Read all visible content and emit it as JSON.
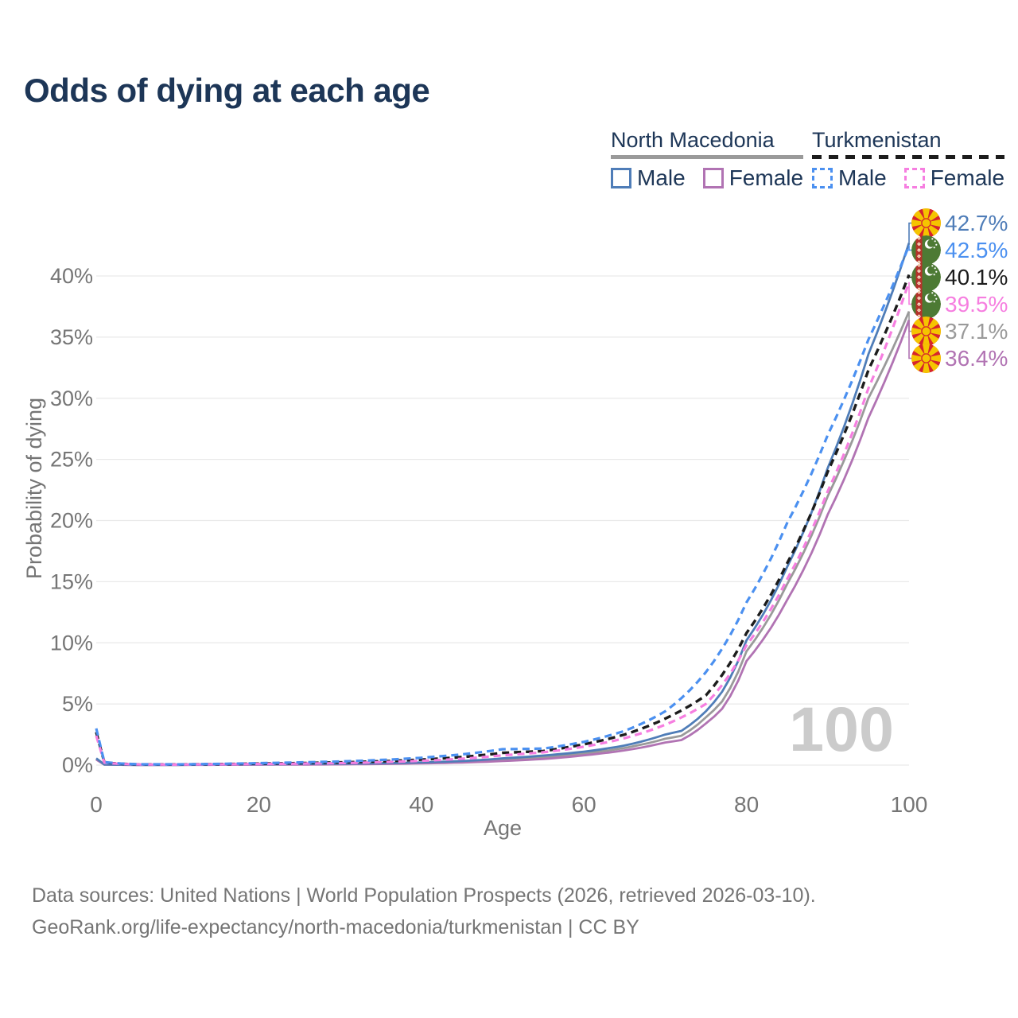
{
  "title": "Odds of dying at each age",
  "colors": {
    "title_text": "#1d3657",
    "axis_text": "#757575",
    "grid": "#e9e9e9",
    "watermark": "#cbcbcb",
    "footer_text": "#757575"
  },
  "legend": {
    "groups": [
      {
        "name": "North Macedonia",
        "line_style": "solid",
        "line_color": "#9a9a9a",
        "items": [
          {
            "label": "Male",
            "color": "#4f7db8",
            "dashed": false
          },
          {
            "label": "Female",
            "color": "#b173b3",
            "dashed": false
          }
        ]
      },
      {
        "name": "Turkmenistan",
        "line_style": "dashed",
        "line_color": "#1c1c1c",
        "items": [
          {
            "label": "Male",
            "color": "#4b90f0",
            "dashed": true
          },
          {
            "label": "Female",
            "color": "#f67ee0",
            "dashed": true
          }
        ]
      }
    ]
  },
  "chart_data": {
    "type": "line",
    "title": "Odds of dying at each age",
    "xlabel": "Age",
    "ylabel": "Probability of dying",
    "xlim": [
      0,
      100
    ],
    "ylim_pct": [
      0,
      44
    ],
    "xticks": [
      0,
      20,
      40,
      60,
      80,
      100
    ],
    "yticks_pct": [
      0,
      5,
      10,
      15,
      20,
      25,
      30,
      35,
      40
    ],
    "grid": true,
    "legend_position": "top-right",
    "watermark": "100",
    "series": [
      {
        "id": "mk-all",
        "name": "North Macedonia (both sexes)",
        "country": "North Macedonia",
        "flag": "mk",
        "color": "#9a9a9a",
        "dashed": false,
        "width": 2.8,
        "end_value_pct": 37.1,
        "end_label": "37.1%",
        "points_age_pct": [
          [
            0,
            0.5
          ],
          [
            1,
            0.045
          ],
          [
            5,
            0.018
          ],
          [
            10,
            0.018
          ],
          [
            15,
            0.033
          ],
          [
            20,
            0.05
          ],
          [
            25,
            0.07
          ],
          [
            30,
            0.085
          ],
          [
            35,
            0.12
          ],
          [
            40,
            0.18
          ],
          [
            45,
            0.27
          ],
          [
            50,
            0.44
          ],
          [
            55,
            0.64
          ],
          [
            60,
            0.95
          ],
          [
            65,
            1.4
          ],
          [
            70,
            2.15
          ],
          [
            72,
            2.4
          ],
          [
            75,
            3.9
          ],
          [
            77,
            5.2
          ],
          [
            80,
            9.3
          ],
          [
            85,
            14.8
          ],
          [
            90,
            22.0
          ],
          [
            95,
            30.0
          ],
          [
            100,
            37.1
          ]
        ]
      },
      {
        "id": "mk-female",
        "name": "North Macedonia Female",
        "country": "North Macedonia",
        "flag": "mk",
        "color": "#b173b3",
        "dashed": false,
        "width": 2.8,
        "end_value_pct": 36.4,
        "end_label": "36.4%",
        "points_age_pct": [
          [
            0,
            0.45
          ],
          [
            1,
            0.04
          ],
          [
            5,
            0.015
          ],
          [
            10,
            0.015
          ],
          [
            15,
            0.025
          ],
          [
            20,
            0.035
          ],
          [
            25,
            0.045
          ],
          [
            30,
            0.06
          ],
          [
            35,
            0.09
          ],
          [
            40,
            0.14
          ],
          [
            45,
            0.21
          ],
          [
            50,
            0.33
          ],
          [
            55,
            0.5
          ],
          [
            60,
            0.8
          ],
          [
            65,
            1.2
          ],
          [
            70,
            1.85
          ],
          [
            72,
            2.05
          ],
          [
            75,
            3.4
          ],
          [
            77,
            4.6
          ],
          [
            80,
            8.5
          ],
          [
            85,
            13.5
          ],
          [
            90,
            20.5
          ],
          [
            95,
            28.4
          ],
          [
            100,
            36.4
          ]
        ]
      },
      {
        "id": "mk-male",
        "name": "North Macedonia Male",
        "country": "North Macedonia",
        "flag": "mk",
        "color": "#4f7db8",
        "dashed": false,
        "width": 2.8,
        "end_value_pct": 42.7,
        "end_label": "42.7%",
        "points_age_pct": [
          [
            0,
            0.55
          ],
          [
            1,
            0.05
          ],
          [
            5,
            0.02
          ],
          [
            10,
            0.02
          ],
          [
            15,
            0.04
          ],
          [
            20,
            0.07
          ],
          [
            25,
            0.09
          ],
          [
            30,
            0.11
          ],
          [
            35,
            0.15
          ],
          [
            40,
            0.22
          ],
          [
            45,
            0.33
          ],
          [
            50,
            0.55
          ],
          [
            55,
            0.78
          ],
          [
            60,
            1.1
          ],
          [
            65,
            1.6
          ],
          [
            70,
            2.5
          ],
          [
            72,
            2.8
          ],
          [
            75,
            4.4
          ],
          [
            77,
            6.0
          ],
          [
            80,
            10.2
          ],
          [
            85,
            16.2
          ],
          [
            90,
            24.3
          ],
          [
            95,
            33.6
          ],
          [
            100,
            42.7
          ]
        ]
      },
      {
        "id": "tm-all",
        "name": "Turkmenistan (both sexes)",
        "country": "Turkmenistan",
        "flag": "tm",
        "color": "#1c1c1c",
        "dashed": true,
        "width": 3.4,
        "end_value_pct": 40.1,
        "end_label": "40.1%",
        "points_age_pct": [
          [
            0,
            2.7
          ],
          [
            1,
            0.22
          ],
          [
            5,
            0.055
          ],
          [
            10,
            0.05
          ],
          [
            15,
            0.08
          ],
          [
            20,
            0.12
          ],
          [
            25,
            0.16
          ],
          [
            30,
            0.22
          ],
          [
            35,
            0.31
          ],
          [
            40,
            0.45
          ],
          [
            45,
            0.66
          ],
          [
            50,
            1.0
          ],
          [
            55,
            1.15
          ],
          [
            60,
            1.7
          ],
          [
            65,
            2.5
          ],
          [
            70,
            3.8
          ],
          [
            75,
            5.7
          ],
          [
            80,
            10.8
          ],
          [
            85,
            16.5
          ],
          [
            90,
            24.0
          ],
          [
            95,
            32.3
          ],
          [
            100,
            40.1
          ]
        ]
      },
      {
        "id": "tm-female",
        "name": "Turkmenistan Female",
        "country": "Turkmenistan",
        "flag": "tm",
        "color": "#f67ee0",
        "dashed": true,
        "width": 3.2,
        "end_value_pct": 39.5,
        "end_label": "39.5%",
        "points_age_pct": [
          [
            0,
            2.4
          ],
          [
            1,
            0.2
          ],
          [
            5,
            0.05
          ],
          [
            10,
            0.04
          ],
          [
            15,
            0.06
          ],
          [
            20,
            0.09
          ],
          [
            25,
            0.12
          ],
          [
            30,
            0.16
          ],
          [
            35,
            0.24
          ],
          [
            40,
            0.35
          ],
          [
            45,
            0.52
          ],
          [
            50,
            0.8
          ],
          [
            55,
            1.05
          ],
          [
            60,
            1.5
          ],
          [
            65,
            2.2
          ],
          [
            70,
            3.3
          ],
          [
            75,
            5.0
          ],
          [
            80,
            9.8
          ],
          [
            85,
            15.2
          ],
          [
            90,
            22.4
          ],
          [
            95,
            30.8
          ],
          [
            100,
            39.5
          ]
        ]
      },
      {
        "id": "tm-male",
        "name": "Turkmenistan Male",
        "country": "Turkmenistan",
        "flag": "tm",
        "color": "#4b90f0",
        "dashed": true,
        "width": 3.2,
        "end_value_pct": 42.5,
        "end_label": "42.5%",
        "points_age_pct": [
          [
            0,
            3.0
          ],
          [
            1,
            0.25
          ],
          [
            5,
            0.07
          ],
          [
            10,
            0.06
          ],
          [
            15,
            0.1
          ],
          [
            20,
            0.16
          ],
          [
            25,
            0.22
          ],
          [
            30,
            0.3
          ],
          [
            35,
            0.42
          ],
          [
            40,
            0.6
          ],
          [
            45,
            0.88
          ],
          [
            50,
            1.3
          ],
          [
            55,
            1.35
          ],
          [
            60,
            1.9
          ],
          [
            65,
            2.8
          ],
          [
            70,
            4.4
          ],
          [
            75,
            7.6
          ],
          [
            80,
            13.3
          ],
          [
            85,
            19.8
          ],
          [
            90,
            27.0
          ],
          [
            95,
            34.8
          ],
          [
            100,
            42.5
          ]
        ]
      }
    ]
  },
  "footer": {
    "line1": "Data sources: United Nations | World Population Prospects (2026, retrieved 2026-03-10).",
    "line2": "GeoRank.org/life-expectancy/north-macedonia/turkmenistan | CC BY"
  }
}
